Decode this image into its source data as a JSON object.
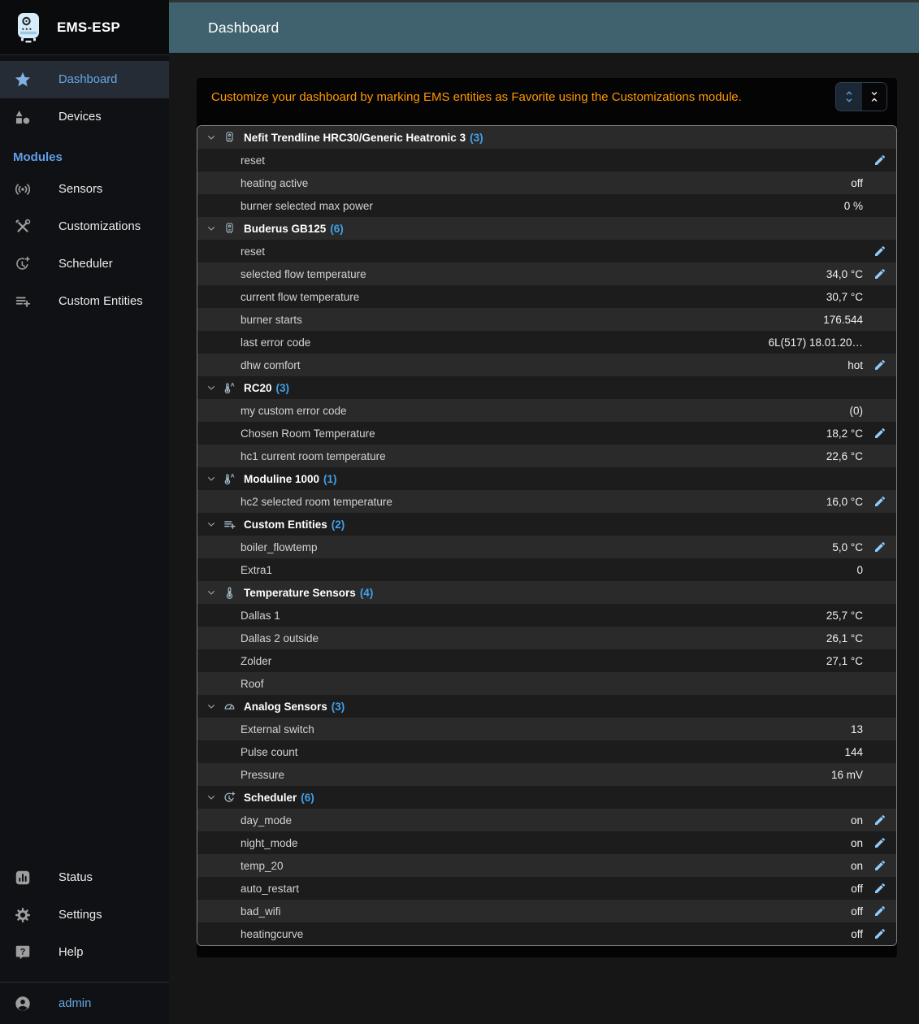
{
  "app": {
    "name": "EMS-ESP"
  },
  "topbar": {
    "title": "Dashboard"
  },
  "sidebar": {
    "primary": [
      {
        "label": "Dashboard",
        "icon": "star-icon",
        "selected": true
      },
      {
        "label": "Devices",
        "icon": "category-icon",
        "selected": false
      }
    ],
    "modules_header": "Modules",
    "modules": [
      {
        "label": "Sensors",
        "icon": "sensors-icon",
        "selected": false
      },
      {
        "label": "Customizations",
        "icon": "tools-icon",
        "selected": false
      },
      {
        "label": "Scheduler",
        "icon": "clock-plus-icon",
        "selected": false
      },
      {
        "label": "Custom Entities",
        "icon": "playlist-add-icon",
        "selected": false
      }
    ],
    "secondary": [
      {
        "label": "Status",
        "icon": "bar-chart-icon",
        "selected": false
      },
      {
        "label": "Settings",
        "icon": "gear-icon",
        "selected": false
      },
      {
        "label": "Help",
        "icon": "help-icon",
        "selected": false
      }
    ],
    "user": {
      "label": "admin",
      "icon": "account-icon"
    }
  },
  "banner": {
    "message": "Customize your dashboard by marking EMS entities as Favorite using the Customizations module.",
    "buttons": [
      {
        "name": "expand-all",
        "icon": "unfold-more-icon",
        "active": true
      },
      {
        "name": "collapse-all",
        "icon": "unfold-less-icon",
        "active": false
      }
    ]
  },
  "dashboard": {
    "groups": [
      {
        "name": "Nefit Trendline HRC30/Generic Heatronic 3",
        "count": 3,
        "icon": "boiler-icon",
        "entities": [
          {
            "label": "reset",
            "value": "",
            "editable": true
          },
          {
            "label": "heating active",
            "value": "off",
            "editable": false
          },
          {
            "label": "burner selected max power",
            "value": "0 %",
            "editable": false
          }
        ]
      },
      {
        "name": "Buderus GB125",
        "count": 6,
        "icon": "boiler-icon",
        "entities": [
          {
            "label": "reset",
            "value": "",
            "editable": true
          },
          {
            "label": "selected flow temperature",
            "value": "34,0 °C",
            "editable": true
          },
          {
            "label": "current flow temperature",
            "value": "30,7 °C",
            "editable": false
          },
          {
            "label": "burner starts",
            "value": "176.544",
            "editable": false
          },
          {
            "label": "last error code",
            "value": "6L(517) 18.01.20…",
            "editable": false
          },
          {
            "label": "dhw comfort",
            "value": "hot",
            "editable": true
          }
        ]
      },
      {
        "name": "RC20",
        "count": 3,
        "icon": "thermostat-icon",
        "entities": [
          {
            "label": "my custom error code",
            "value": "(0)",
            "editable": false
          },
          {
            "label": "Chosen Room Temperature",
            "value": "18,2 °C",
            "editable": true
          },
          {
            "label": "hc1 current room temperature",
            "value": "22,6 °C",
            "editable": false
          }
        ]
      },
      {
        "name": "Moduline 1000",
        "count": 1,
        "icon": "thermostat-icon",
        "entities": [
          {
            "label": "hc2 selected room temperature",
            "value": "16,0 °C",
            "editable": true
          }
        ]
      },
      {
        "name": "Custom Entities",
        "count": 2,
        "icon": "playlist-add-icon",
        "entities": [
          {
            "label": "boiler_flowtemp",
            "value": "5,0 °C",
            "editable": true
          },
          {
            "label": "Extra1",
            "value": "0",
            "editable": false
          }
        ]
      },
      {
        "name": "Temperature Sensors",
        "count": 4,
        "icon": "thermometer-icon",
        "entities": [
          {
            "label": "Dallas 1",
            "value": "25,7 °C",
            "editable": false
          },
          {
            "label": "Dallas 2 outside",
            "value": "26,1 °C",
            "editable": false
          },
          {
            "label": "Zolder",
            "value": "27,1 °C",
            "editable": false
          },
          {
            "label": "Roof",
            "value": "",
            "editable": false
          }
        ]
      },
      {
        "name": "Analog Sensors",
        "count": 3,
        "icon": "gauge-icon",
        "entities": [
          {
            "label": "External switch",
            "value": "13",
            "editable": false
          },
          {
            "label": "Pulse count",
            "value": "144",
            "editable": false
          },
          {
            "label": "Pressure",
            "value": "16 mV",
            "editable": false
          }
        ]
      },
      {
        "name": "Scheduler",
        "count": 6,
        "icon": "clock-plus-icon",
        "entities": [
          {
            "label": "day_mode",
            "value": "on",
            "editable": true
          },
          {
            "label": "night_mode",
            "value": "on",
            "editable": true
          },
          {
            "label": "temp_20",
            "value": "on",
            "editable": true
          },
          {
            "label": "auto_restart",
            "value": "off",
            "editable": true
          },
          {
            "label": "bad_wifi",
            "value": "off",
            "editable": true
          },
          {
            "label": "heatingcurve",
            "value": "off",
            "editable": true
          }
        ]
      }
    ]
  },
  "colors": {
    "topbar_bg": "#40626F",
    "banner_text": "#ff9800",
    "accent_blue": "#66a8e4",
    "count_blue": "#42a0e8",
    "edit_blue": "#90caf9",
    "row_light": "#2a2a2a",
    "row_dark": "#1c1c1c"
  }
}
